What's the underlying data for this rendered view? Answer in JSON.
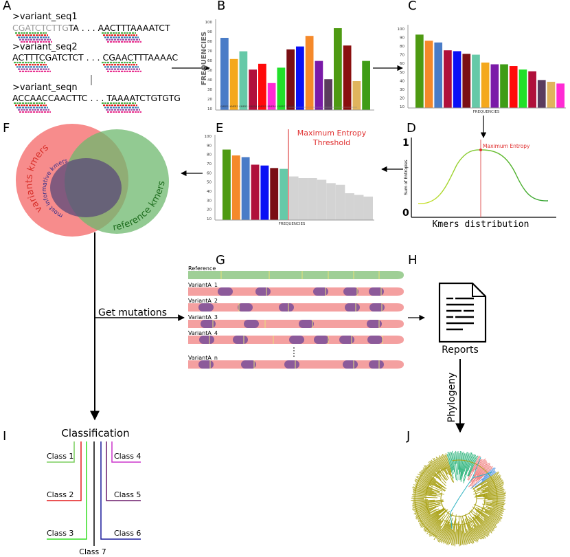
{
  "panels": {
    "a": "A",
    "b": "B",
    "c": "C",
    "d": "D",
    "e": "E",
    "f": "F",
    "g": "G",
    "h": "H",
    "i": "I",
    "j": "J"
  },
  "panel_a": {
    "seq1_name": ">variant_seq1",
    "seq1_left": "CGATCTCTTG",
    "seq1_mid": "TA . . . ",
    "seq1_right": "AACTTTAAAATCT",
    "seq2_name": ">variant_seq2",
    "seq2_left": "ACTTTCGATCTCT",
    "seq2_mid": " . . . ",
    "seq2_right": "CGAACTTTAAAAC",
    "seqn_name": ">variant_seqn",
    "seqn_left": "ACCAACCAACTTC",
    "seqn_mid": " . . . ",
    "seqn_right": "TAAAATCTGTGTG",
    "kmer_colors": [
      "#4daf4a",
      "#e41a1c",
      "#377eb8",
      "#984ea3",
      "#e7298a"
    ]
  },
  "panel_b": {
    "ylabel": "FREQUENCIES",
    "yticks": [
      "10",
      "20",
      "30",
      "40",
      "50",
      "60",
      "70",
      "80",
      "90",
      "100"
    ],
    "xticks": [
      "KMER1",
      "KMER2",
      "KMER3",
      "KMER4",
      "KMER5",
      "KMER6",
      "KMER7",
      "KMER8"
    ],
    "bars": [
      {
        "value": 75,
        "color": "#4a7cc7"
      },
      {
        "value": 53,
        "color": "#f4a81d"
      },
      {
        "value": 61,
        "color": "#66c9a8"
      },
      {
        "value": 42,
        "color": "#b0103b"
      },
      {
        "value": 48,
        "color": "#ff0a0a"
      },
      {
        "value": 28,
        "color": "#ff2ad4"
      },
      {
        "value": 44,
        "color": "#22e02a"
      },
      {
        "value": 63,
        "color": "#7a0f14"
      },
      {
        "value": 66,
        "color": "#0a10f5"
      },
      {
        "value": 77,
        "color": "#f5892a"
      },
      {
        "value": 51,
        "color": "#7a1aa8"
      },
      {
        "value": 32,
        "color": "#5b3c5e"
      },
      {
        "value": 85,
        "color": "#4e9a12"
      },
      {
        "value": 67,
        "color": "#8a0f0f"
      },
      {
        "value": 30,
        "color": "#e0b45d"
      },
      {
        "value": 51,
        "color": "#3f9c16"
      }
    ]
  },
  "panel_c": {
    "xlabel": "FREQUENCIES",
    "yticks": [
      "10",
      "20",
      "30",
      "40",
      "50",
      "60",
      "70",
      "80",
      "90",
      "100"
    ],
    "bars": [
      {
        "value": 84,
        "color": "#4e9a12"
      },
      {
        "value": 77,
        "color": "#f5892a"
      },
      {
        "value": 75,
        "color": "#4a7cc7"
      },
      {
        "value": 66,
        "color": "#b0103b"
      },
      {
        "value": 65,
        "color": "#0a10f5"
      },
      {
        "value": 62,
        "color": "#7a0f14"
      },
      {
        "value": 61,
        "color": "#66c9a8"
      },
      {
        "value": 52,
        "color": "#f4a81d"
      },
      {
        "value": 50,
        "color": "#7a1aa8"
      },
      {
        "value": 50,
        "color": "#3f9c16"
      },
      {
        "value": 48,
        "color": "#ff0a0a"
      },
      {
        "value": 44,
        "color": "#22e02a"
      },
      {
        "value": 42,
        "color": "#b0103b"
      },
      {
        "value": 32,
        "color": "#5b3c5e"
      },
      {
        "value": 30,
        "color": "#e0b45d"
      },
      {
        "value": 28,
        "color": "#ff2ad4"
      }
    ]
  },
  "panel_d": {
    "y_top": "1",
    "y_bottom": "0",
    "ylabel": "Sum of Entropies",
    "xlabel": "Kmers distribution",
    "annotation": "Maximum Entropy"
  },
  "panel_e": {
    "threshold_line1": "Maximum Entropy",
    "threshold_line2": "Threshold",
    "xlabel": "FREQUENCIES",
    "yticks": [
      "10",
      "20",
      "30",
      "40",
      "50",
      "60",
      "70",
      "80",
      "90",
      "100"
    ],
    "kept_bars": [
      {
        "value": 84,
        "color": "#4e9a12"
      },
      {
        "value": 77,
        "color": "#f5892a"
      },
      {
        "value": 75,
        "color": "#4a7cc7"
      },
      {
        "value": 66,
        "color": "#b0103b"
      },
      {
        "value": 65,
        "color": "#0a10f5"
      },
      {
        "value": 62,
        "color": "#7a0f14"
      },
      {
        "value": 61,
        "color": "#66c9a8"
      }
    ],
    "dropped_values": [
      52,
      50,
      50,
      48,
      44,
      42,
      32,
      30,
      28
    ],
    "dropped_color": "#d3d3d3"
  },
  "panel_f": {
    "variants_label": "variants kmers",
    "reference_label": "reference kmers",
    "informative_label": "most informative kmers"
  },
  "arrow_label": "Get mutations",
  "panel_g": {
    "tracks": [
      "Reference",
      "VariantA_1",
      "VariantA_2",
      "VariantA_3",
      "VariantA_4",
      "VariantA_n"
    ],
    "reference_color": "#9fcf96",
    "variant_color": "#f4a0a0",
    "mutation_color": "#8c5a9a"
  },
  "panel_h": {
    "label": "Reports"
  },
  "phylogeny_label": "Phylogeny",
  "panel_i": {
    "title": "Classification",
    "classes": [
      {
        "label": "Class 1",
        "color": "#7acd5e"
      },
      {
        "label": "Class 2",
        "color": "#e41a1c"
      },
      {
        "label": "Class 3",
        "color": "#33dd22"
      },
      {
        "label": "Class 4",
        "color": "#cc33cc"
      },
      {
        "label": "Class 5",
        "color": "#6a1a6a"
      },
      {
        "label": "Class 6",
        "color": "#1a1a9a"
      },
      {
        "label": "Class 7",
        "color": "#000000"
      }
    ]
  }
}
